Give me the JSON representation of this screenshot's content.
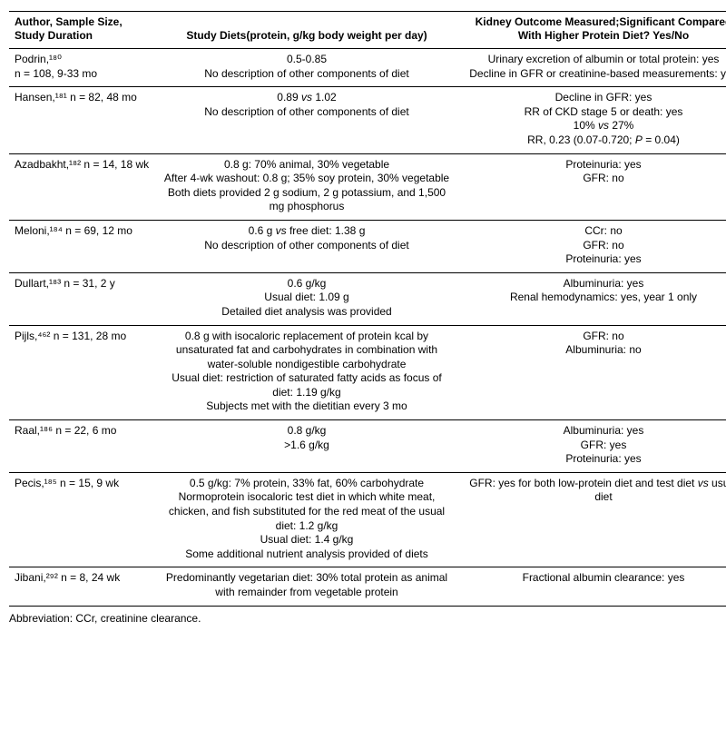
{
  "headers": {
    "author": "Author, Sample Size, Study Duration",
    "diets": "Study Diets\n(protein, g/kg body weight per day)",
    "outcome": "Kidney Outcome Measured;\nSignificant Compared With Higher Protein Diet? Yes/No"
  },
  "rows": [
    {
      "author": "Podrin,¹⁸⁰\nn = 108, 9-33 mo",
      "diets": "0.5-0.85\nNo description of other components of diet",
      "outcome": "Urinary excretion of albumin or total protein: yes\nDecline in GFR or creatinine-based measurements: yes"
    },
    {
      "author": "Hansen,¹⁸¹ n = 82, 48 mo",
      "diets": "0.89 vs 1.02\nNo description of other components of diet",
      "outcome": "Decline in GFR: yes\nRR of CKD stage 5 or death: yes\n10% vs 27%\nRR, 0.23 (0.07-0.720; P = 0.04)"
    },
    {
      "author": "Azadbakht,¹⁸² n = 14, 18 wk",
      "diets": "0.8 g: 70% animal, 30% vegetable\nAfter 4-wk washout: 0.8 g; 35% soy protein, 30% vegetable\nBoth diets provided 2 g sodium, 2 g potassium, and 1,500 mg phosphorus",
      "outcome": "Proteinuria: yes\nGFR: no"
    },
    {
      "author": "Meloni,¹⁸⁴ n = 69, 12 mo",
      "diets": "0.6 g vs free diet: 1.38 g\nNo description of other components of diet",
      "outcome": "CCr: no\nGFR: no\nProteinuria: yes"
    },
    {
      "author": "Dullart,¹⁸³ n = 31, 2 y",
      "diets": "0.6 g/kg\nUsual diet: 1.09 g\nDetailed diet analysis was provided",
      "outcome": "Albuminuria: yes\nRenal hemodynamics: yes, year 1 only"
    },
    {
      "author": "Pijls,⁴⁶² n = 131, 28 mo",
      "diets": "0.8 g with isocaloric replacement of protein kcal by unsaturated fat and carbohydrates in combination with water-soluble nondigestible carbohydrate\nUsual diet: restriction of saturated fatty acids as focus of diet: 1.19 g/kg\nSubjects met with the dietitian every 3 mo",
      "outcome": "GFR: no\nAlbuminuria: no"
    },
    {
      "author": "Raal,¹⁸⁶ n = 22, 6 mo",
      "diets": "0.8 g/kg\n>1.6 g/kg",
      "outcome": "Albuminuria: yes\nGFR: yes\nProteinuria: yes"
    },
    {
      "author": "Pecis,¹⁸⁵ n = 15, 9 wk",
      "diets": "0.5 g/kg: 7% protein, 33% fat, 60% carbohydrate\nNormoprotein isocaloric test diet in which white meat, chicken, and fish substituted for the red meat of the usual diet: 1.2 g/kg\nUsual diet: 1.4 g/kg\nSome additional nutrient analysis provided of diets",
      "outcome": "GFR: yes for both low-protein diet and test diet vs usual diet"
    },
    {
      "author": "Jibani,²⁹² n = 8, 24 wk",
      "diets": "Predominantly vegetarian diet: 30% total protein as animal with remainder from vegetable protein",
      "outcome": "Fractional albumin clearance: yes",
      "last": true
    }
  ],
  "footnote": "Abbreviation: CCr, creatinine clearance."
}
